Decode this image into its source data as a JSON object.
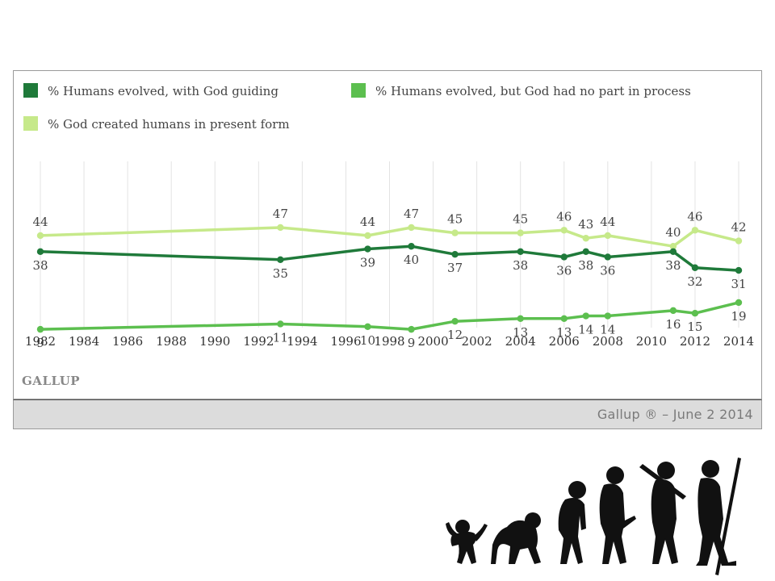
{
  "logo_text": "GALLUP",
  "caption": "Gallup ® – June 2 2014",
  "colors": {
    "dark_green": "#1f7a3a",
    "mid_green": "#5cbf4f",
    "light_green": "#c6e98a",
    "grid": "#e3e3e3"
  },
  "illustration": "march-of-progress-silhouettes",
  "chart_data": {
    "type": "line",
    "x_ticks": [
      1982,
      1984,
      1986,
      1988,
      1990,
      1992,
      1994,
      1996,
      1998,
      2000,
      2002,
      2004,
      2006,
      2008,
      2010,
      2012,
      2014
    ],
    "xlim": [
      1982,
      2014
    ],
    "ylim": [
      0,
      60
    ],
    "grid": "vertical",
    "legend_position": "top",
    "series": [
      {
        "name": "% Humans evolved, with God guiding",
        "color": "#1f7a3a",
        "x": [
          1982,
          1993,
          1997,
          1999,
          2001,
          2004,
          2006,
          2007,
          2008,
          2011,
          2012,
          2014
        ],
        "values": [
          38,
          35,
          39,
          40,
          37,
          38,
          36,
          38,
          36,
          38,
          32,
          31
        ]
      },
      {
        "name": "% Humans evolved, but God had no part in process",
        "color": "#5cbf4f",
        "x": [
          1982,
          1993,
          1997,
          1999,
          2001,
          2004,
          2006,
          2007,
          2008,
          2011,
          2012,
          2014
        ],
        "values": [
          9,
          11,
          10,
          9,
          12,
          13,
          13,
          14,
          14,
          16,
          15,
          19
        ]
      },
      {
        "name": "% God created humans in present form",
        "color": "#c6e98a",
        "x": [
          1982,
          1993,
          1997,
          1999,
          2001,
          2004,
          2006,
          2007,
          2008,
          2011,
          2012,
          2014
        ],
        "values": [
          44,
          47,
          44,
          47,
          45,
          45,
          46,
          43,
          44,
          40,
          46,
          42
        ]
      }
    ]
  }
}
